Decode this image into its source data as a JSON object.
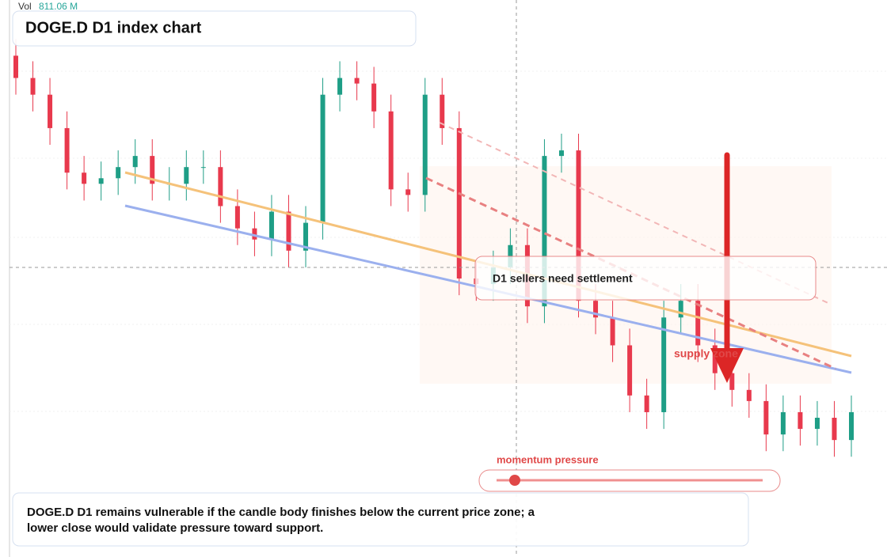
{
  "chart_data": {
    "type": "candlestick",
    "title": "DOGE.D D1 index chart",
    "volume_label": "Vol",
    "volume_value": "811.06 M",
    "annotations": [
      "D1 sellers need settlement",
      "supply zone",
      "momentum pressure"
    ],
    "note": "DOGE.D D1 remains vulnerable if the candle body finishes below the current price zone; a lower close would validate pressure toward support.",
    "up_color": "#1e9e86",
    "down_color": "#e8394d",
    "ylim": [
      0,
      100
    ],
    "open": [
      90,
      86,
      83,
      77,
      69,
      67,
      68,
      70,
      72,
      67,
      67,
      70,
      70,
      63,
      59,
      57,
      62,
      55,
      60,
      83,
      86,
      85,
      80,
      66,
      65,
      83,
      77,
      50,
      49,
      52,
      56,
      45,
      72,
      73,
      46,
      43,
      38,
      29,
      26,
      43,
      46,
      38,
      33,
      30,
      28,
      22,
      26,
      23,
      25,
      21
    ],
    "high": [
      93,
      89,
      86,
      80,
      72,
      71,
      73,
      75,
      75,
      70,
      73,
      73,
      73,
      66,
      62,
      65,
      65,
      63,
      86,
      89,
      89,
      88,
      83,
      69,
      86,
      86,
      80,
      53,
      55,
      59,
      59,
      75,
      76,
      76,
      49,
      46,
      41,
      32,
      46,
      49,
      49,
      41,
      36,
      33,
      31,
      29,
      29,
      28,
      28,
      29
    ],
    "low": [
      83,
      80,
      74,
      66,
      64,
      64,
      65,
      67,
      64,
      64,
      64,
      67,
      60,
      56,
      54,
      54,
      52,
      52,
      57,
      80,
      82,
      77,
      63,
      62,
      62,
      74,
      47,
      46,
      46,
      49,
      42,
      42,
      69,
      43,
      40,
      35,
      26,
      23,
      23,
      40,
      35,
      30,
      27,
      25,
      19,
      19,
      20,
      20,
      18,
      18
    ],
    "close": [
      86,
      83,
      77,
      69,
      67,
      68,
      70,
      72,
      67,
      67,
      70,
      70,
      63,
      59,
      57,
      62,
      55,
      60,
      83,
      86,
      85,
      80,
      66,
      65,
      83,
      77,
      50,
      49,
      52,
      56,
      45,
      72,
      73,
      46,
      43,
      38,
      29,
      26,
      43,
      46,
      38,
      33,
      30,
      28,
      22,
      26,
      23,
      25,
      21,
      26
    ]
  }
}
